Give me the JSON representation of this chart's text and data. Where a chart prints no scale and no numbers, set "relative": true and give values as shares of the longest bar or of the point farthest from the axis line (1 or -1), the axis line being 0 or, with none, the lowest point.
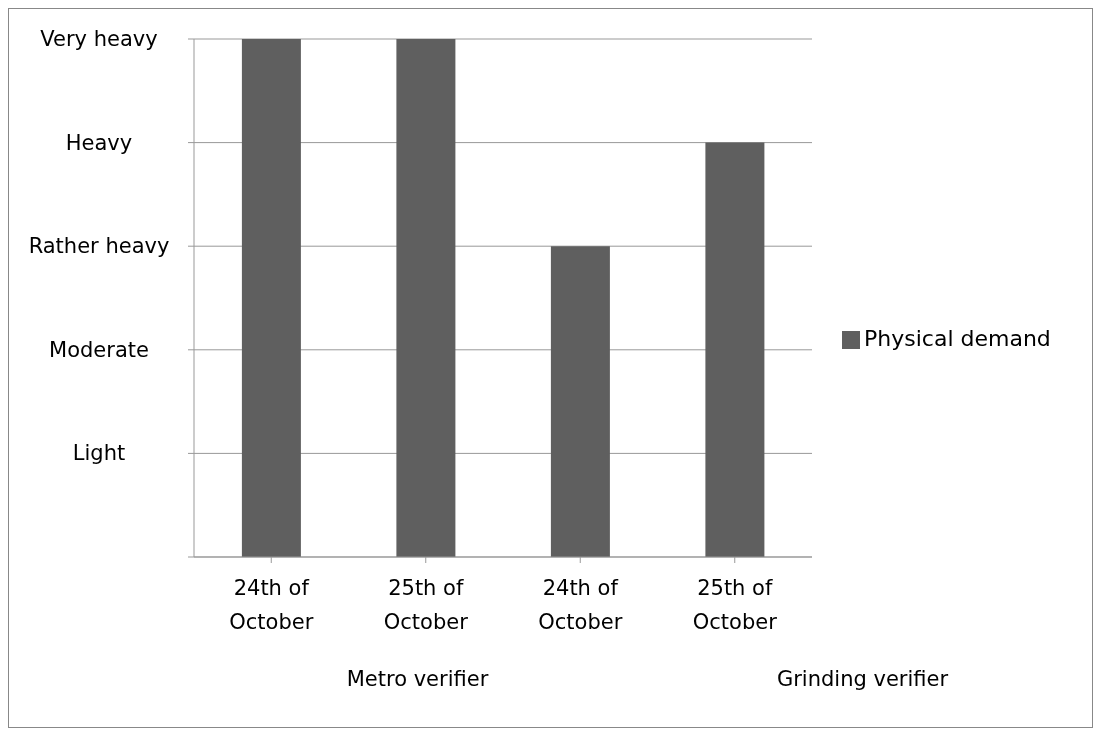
{
  "chart_data": {
    "type": "bar",
    "categories": [
      "24th of October",
      "25th of October",
      "24th of October",
      "25th of October"
    ],
    "series": [
      {
        "name": "Physical demand",
        "color": "#5f5f5f",
        "values": [
          1,
          1,
          0.6,
          0.8
        ]
      }
    ],
    "relative": true,
    "y_categories": [
      "Very heavy",
      "Heavy",
      "Rather heavy",
      "Moderate",
      "Light"
    ],
    "grid": "y",
    "legend": "right",
    "annotations": [
      "Metro verifier",
      "Grinding verifier"
    ]
  }
}
